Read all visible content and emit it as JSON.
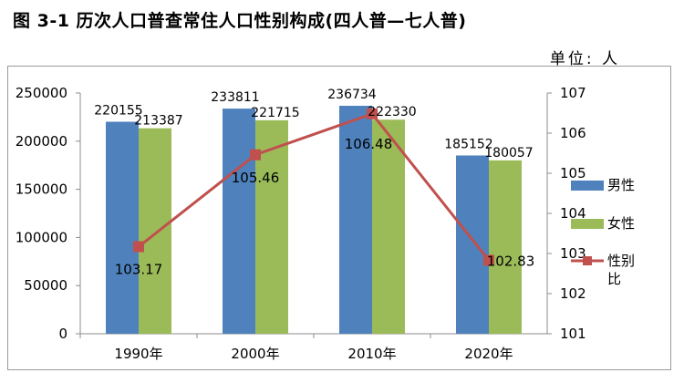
{
  "title": "图 3-1   历次人口普查常住人口性别构成(四人普—七人普)",
  "unit": "单位: 人",
  "chart_data": {
    "type": "bar",
    "categories": [
      "1990年",
      "2000年",
      "2010年",
      "2020年"
    ],
    "series": [
      {
        "name": "男性",
        "type": "bar",
        "axis": "left",
        "color": "#4f81bd",
        "values": [
          220155,
          233811,
          236734,
          185152
        ]
      },
      {
        "name": "女性",
        "type": "bar",
        "axis": "left",
        "color": "#9bbb59",
        "values": [
          213387,
          221715,
          222330,
          180057
        ]
      },
      {
        "name": "性别比",
        "type": "line",
        "axis": "right",
        "color": "#c0504d",
        "values": [
          103.17,
          105.46,
          106.48,
          102.83
        ]
      }
    ],
    "y_left": {
      "min": 0,
      "max": 250000,
      "ticks": [
        0,
        50000,
        100000,
        150000,
        200000,
        250000
      ]
    },
    "y_right": {
      "min": 101,
      "max": 107,
      "ticks": [
        101,
        102,
        103,
        104,
        105,
        106,
        107
      ]
    },
    "legend_position": "right",
    "grid": false
  }
}
